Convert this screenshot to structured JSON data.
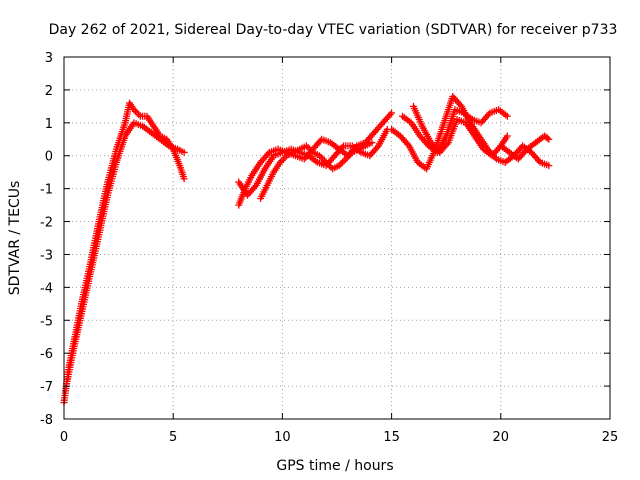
{
  "chart_data": {
    "type": "scatter",
    "title": "Day 262 of 2021, Sidereal Day-to-day VTEC variation (SDTVAR) for receiver p733",
    "xlabel": "GPS time / hours",
    "ylabel": "SDTVAR / TECUs",
    "xlim": [
      0,
      25
    ],
    "ylim": [
      -8,
      3
    ],
    "x_ticks": [
      0,
      5,
      10,
      15,
      20,
      25
    ],
    "y_ticks": [
      -8,
      -7,
      -6,
      -5,
      -4,
      -3,
      -2,
      -1,
      0,
      1,
      2,
      3
    ],
    "grid": true,
    "marker": "plus",
    "series": [
      {
        "name": "SDTVAR",
        "color": "#ff0000",
        "tracks": [
          {
            "x": [
              0.0,
              0.2,
              0.5,
              0.8,
              1.2,
              1.6,
              2.0,
              2.4,
              2.8,
              3.0,
              3.2,
              3.5,
              3.8,
              4.1,
              4.4,
              4.7,
              5.0,
              5.3,
              5.5
            ],
            "y": [
              -7.5,
              -6.5,
              -5.5,
              -4.5,
              -3.3,
              -2.0,
              -0.8,
              0.2,
              1.0,
              1.6,
              1.4,
              1.2,
              1.2,
              0.9,
              0.6,
              0.5,
              0.2,
              -0.3,
              -0.7
            ]
          },
          {
            "x": [
              0.1,
              0.4,
              0.8,
              1.2,
              1.6,
              2.0,
              2.4,
              2.8,
              3.2,
              3.6,
              4.0,
              4.4,
              4.8,
              5.2,
              5.5
            ],
            "y": [
              -7.0,
              -6.0,
              -4.8,
              -3.6,
              -2.4,
              -1.2,
              -0.2,
              0.6,
              1.0,
              0.9,
              0.7,
              0.5,
              0.3,
              0.2,
              0.1
            ]
          },
          {
            "x": [
              8.0,
              8.3,
              8.6,
              9.0,
              9.4,
              9.8,
              10.2,
              10.6,
              11.0,
              11.4,
              11.8,
              12.2,
              12.6,
              13.0,
              13.4,
              13.8,
              14.2,
              14.6,
              15.0
            ],
            "y": [
              -1.5,
              -1.0,
              -0.6,
              -0.2,
              0.1,
              0.2,
              0.1,
              0.0,
              -0.1,
              0.2,
              0.5,
              0.4,
              0.2,
              0.0,
              0.3,
              0.4,
              0.7,
              1.0,
              1.3
            ]
          },
          {
            "x": [
              8.0,
              8.4,
              8.8,
              9.2,
              9.6,
              10.0,
              10.4,
              10.8,
              11.2,
              11.6,
              12.0,
              12.4,
              12.8,
              13.2,
              13.6,
              14.0,
              14.4,
              14.8
            ],
            "y": [
              -0.8,
              -1.2,
              -0.9,
              -0.4,
              0.0,
              0.1,
              0.2,
              0.1,
              0.0,
              -0.2,
              -0.3,
              0.0,
              0.3,
              0.3,
              0.1,
              0.0,
              0.3,
              0.8
            ]
          },
          {
            "x": [
              9.0,
              9.3,
              9.6,
              9.9,
              10.2,
              10.5,
              10.8,
              11.1,
              11.4,
              11.7,
              12.0,
              12.3,
              12.6,
              12.9,
              13.2,
              13.5,
              13.8,
              14.1
            ],
            "y": [
              -1.3,
              -0.9,
              -0.5,
              -0.2,
              0.0,
              0.1,
              0.2,
              0.3,
              0.1,
              0.0,
              -0.2,
              -0.4,
              -0.3,
              -0.1,
              0.1,
              0.2,
              0.3,
              0.4
            ]
          },
          {
            "x": [
              15.0,
              15.4,
              15.8,
              16.2,
              16.6,
              17.0,
              17.4,
              17.8,
              18.2,
              18.6,
              19.0,
              19.4,
              19.8,
              20.2
            ],
            "y": [
              0.8,
              0.6,
              0.3,
              -0.2,
              -0.4,
              0.2,
              1.0,
              1.8,
              1.5,
              1.0,
              0.6,
              0.2,
              -0.1,
              -0.2
            ]
          },
          {
            "x": [
              15.5,
              15.9,
              16.3,
              16.7,
              17.1,
              17.5,
              17.9,
              18.3,
              18.7,
              19.1,
              19.5,
              19.9,
              20.3
            ],
            "y": [
              1.2,
              1.0,
              0.6,
              0.3,
              0.1,
              0.6,
              1.4,
              1.3,
              1.1,
              1.0,
              1.3,
              1.4,
              1.2
            ]
          },
          {
            "x": [
              16.0,
              16.4,
              16.8,
              17.2,
              17.6,
              18.0,
              18.4,
              18.8,
              19.2,
              19.6,
              20.0,
              20.3
            ],
            "y": [
              1.5,
              0.9,
              0.4,
              0.1,
              0.4,
              1.1,
              1.0,
              0.6,
              0.2,
              0.0,
              0.3,
              0.6
            ]
          },
          {
            "x": [
              20.0,
              20.4,
              20.8,
              21.2,
              21.6,
              22.0,
              22.2
            ],
            "y": [
              0.3,
              0.1,
              -0.1,
              0.2,
              0.4,
              0.6,
              0.5
            ]
          },
          {
            "x": [
              20.2,
              20.6,
              21.0,
              21.4,
              21.8,
              22.2
            ],
            "y": [
              -0.2,
              0.0,
              0.3,
              0.1,
              -0.2,
              -0.3
            ]
          }
        ]
      }
    ]
  }
}
